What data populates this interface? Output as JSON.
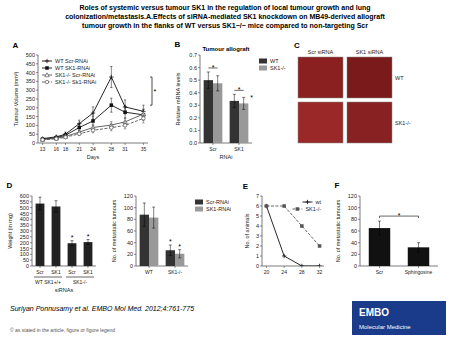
{
  "title": "Roles of systemic versus tumour SK1 in the regulation of local tumour growth and lung\ncolonization/metastasis.A.Effects of siRNA-mediated SK1 knockdown on MB49-derived allograft\ntumour growth in the flanks of WT versus SK1−/− mice compared to non-targeting Scr",
  "annotations": [
    "Suriyan Ponnusamy et al. EMBO Mol Med. 2012;4:761-775",
    "© as stated in the article, figure or figure legend",
    "EMBO",
    "Molecular Medicine"
  ],
  "chart_data": [
    {
      "type": "line",
      "label": "A",
      "xlabel": "Days",
      "ylabel": "Tumour Volume (mm³)",
      "x": [
        13,
        16,
        18,
        21,
        24,
        28,
        31,
        35
      ],
      "xlim": [
        12,
        36
      ],
      "xticks": [
        13,
        16,
        18,
        21,
        24,
        28,
        31,
        35
      ],
      "ylim": [
        0,
        500
      ],
      "yticks": [
        0,
        50,
        100,
        150,
        200,
        250,
        300,
        350,
        400,
        450,
        500
      ],
      "legend": "upper left",
      "series": [
        {
          "name": "WT Scr-RNAi",
          "color": "#111111",
          "marker": "plus",
          "line_style": "solid",
          "values": [
            25,
            35,
            50,
            110,
            170,
            375,
            205,
            180
          ],
          "errors": [
            5,
            8,
            12,
            20,
            35,
            60,
            40,
            35
          ]
        },
        {
          "name": "WT SK1-RNAi",
          "color": "#111111",
          "marker": "square",
          "line_style": "solid",
          "values": [
            22,
            30,
            44,
            88,
            125,
            215,
            175,
            160
          ],
          "errors": [
            5,
            7,
            10,
            18,
            28,
            40,
            35,
            30
          ]
        },
        {
          "name": "SK1-/- Scr-RNAi",
          "color": "#555555",
          "marker": "triangle",
          "line_style": "solid",
          "values": [
            20,
            27,
            37,
            62,
            88,
            102,
            120,
            165
          ],
          "errors": [
            4,
            6,
            8,
            12,
            18,
            20,
            24,
            28
          ]
        },
        {
          "name": "SK1-/- Sk1-RNAi",
          "color": "#555555",
          "marker": "circle",
          "line_style": "dashed",
          "values": [
            18,
            24,
            33,
            52,
            72,
            87,
            100,
            140
          ],
          "errors": [
            4,
            5,
            7,
            10,
            14,
            18,
            20,
            26
          ]
        }
      ],
      "annotations": [
        "*"
      ]
    },
    {
      "type": "bar",
      "label": "B",
      "title": "Tumour allograft",
      "xlabel": "RNAi",
      "ylabel": "Relative mRNA levels",
      "categories": [
        "Scr",
        "SK1"
      ],
      "series": [
        {
          "name": "WT",
          "color": "#333333",
          "values": [
            0.5,
            0.335
          ],
          "errors": [
            0.065,
            0.052
          ]
        },
        {
          "name": "SK1-/-",
          "color": "#999999",
          "values": [
            0.475,
            0.315
          ],
          "errors": [
            0.06,
            0.048
          ]
        }
      ],
      "ylim": [
        0,
        0.7
      ],
      "yticks": [
        {
          "value": 0,
          "label": "0.0"
        },
        0.1,
        0.2,
        0.3,
        0.4,
        0.5,
        0.6,
        0.7
      ],
      "legend": "right",
      "annotations": [
        "*",
        "*",
        "*"
      ]
    },
    {
      "type": "image_grid",
      "label": "C",
      "categories": [
        "Scr siRNA",
        "SK1 siRNA"
      ],
      "series": [
        {
          "name": "WT",
          "colors": [
            "#8B2020",
            "#7A1A1A"
          ]
        },
        {
          "name": "SK1-/-",
          "colors": [
            "#9B2828",
            "#882222"
          ]
        }
      ]
    },
    {
      "type": "bar",
      "label": "D",
      "ylabel": "Weight (in mg)",
      "xlabel": "siRNAs",
      "categories": [
        "Scr",
        "SK1",
        "Scr",
        "SK1"
      ],
      "values": [
        535,
        510,
        195,
        205
      ],
      "errors": [
        55,
        50,
        22,
        22
      ],
      "color": "#222222",
      "groups": [
        "WT SK1+/+",
        "SK1-/-"
      ],
      "ylim": [
        0,
        600
      ],
      "yticks": [
        0,
        50,
        100,
        150,
        200,
        250,
        300,
        350,
        400,
        450,
        500,
        550,
        600
      ],
      "annotations": [
        "*",
        "*"
      ]
    },
    {
      "type": "bar",
      "ylabel": "No. of metastatic tumours",
      "categories": [
        "WT",
        "SK1-/-"
      ],
      "series": [
        {
          "name": "Scr-RNAi",
          "color": "#333333",
          "values": [
            88,
            27
          ],
          "errors": [
            20,
            9
          ]
        },
        {
          "name": "SK1-RNAi",
          "color": "#999999",
          "values": [
            83,
            21
          ],
          "errors": [
            18,
            7
          ]
        }
      ],
      "ylim": [
        0,
        120
      ],
      "yticks": [
        0,
        20,
        40,
        60,
        80,
        100,
        120
      ],
      "legend": "right",
      "annotations": [
        "*",
        "*"
      ]
    },
    {
      "type": "line",
      "label": "E",
      "ylabel": "No. of animals",
      "x": [
        20,
        24,
        28,
        32
      ],
      "xlim": [
        19,
        33
      ],
      "xticks": [
        20,
        24,
        28,
        32
      ],
      "ylim": [
        0,
        7
      ],
      "yticks": [
        0,
        1,
        2,
        3,
        4,
        5,
        6,
        7
      ],
      "legend": "upper right",
      "series": [
        {
          "name": "wt",
          "color": "#111111",
          "marker": "plus",
          "line_style": "solid",
          "values": [
            6,
            1,
            0,
            0
          ]
        },
        {
          "name": "SK1-/-",
          "color": "#555555",
          "marker": "square",
          "line_style": "dashed",
          "values": [
            6,
            6,
            4,
            2
          ]
        }
      ]
    },
    {
      "type": "bar",
      "label": "F",
      "ylabel": "No. of metastatic tumours",
      "categories": [
        "Scr",
        "Sphingosine"
      ],
      "values": [
        65,
        32
      ],
      "errors": [
        12,
        8
      ],
      "color": "#111111",
      "ylim": [
        0,
        120
      ],
      "yticks": [
        0,
        20,
        40,
        60,
        80,
        100,
        120
      ],
      "annotations": [
        "*"
      ]
    }
  ]
}
